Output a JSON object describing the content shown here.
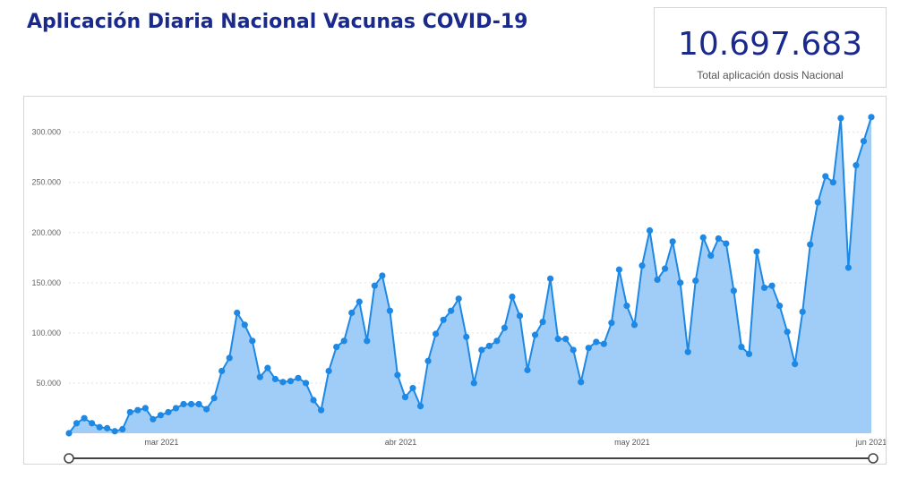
{
  "header": {
    "title": "Aplicación Diaria Nacional Vacunas COVID-19"
  },
  "kpi": {
    "value": "10.697.683",
    "label": "Total aplicación dosis Nacional"
  },
  "colors": {
    "title": "#1a2a8c",
    "line": "#1e88e5",
    "area": "#9fcdf7",
    "grid": "#e3e3e3"
  },
  "chart_data": {
    "type": "area",
    "ylim": [
      0,
      330000
    ],
    "yticks": [
      {
        "value": 50000,
        "label": "50.000"
      },
      {
        "value": 100000,
        "label": "100.000"
      },
      {
        "value": 150000,
        "label": "150.000"
      },
      {
        "value": 200000,
        "label": "200.000"
      },
      {
        "value": 250000,
        "label": "250.000"
      },
      {
        "value": 300000,
        "label": "300.000"
      }
    ],
    "xticks": [
      {
        "date": "2021-03-01",
        "label": "mar 2021"
      },
      {
        "date": "2021-04-01",
        "label": "abr 2021"
      },
      {
        "date": "2021-05-01",
        "label": "may 2021"
      },
      {
        "date": "2021-06-01",
        "label": "jun 2021"
      }
    ],
    "x_start": "2021-02-17",
    "x_end": "2021-06-01",
    "values": [
      0,
      10000,
      15000,
      10000,
      6000,
      5000,
      2000,
      4000,
      21000,
      23000,
      25000,
      14000,
      18000,
      21000,
      25000,
      29000,
      29000,
      29000,
      24000,
      35000,
      62000,
      75000,
      120000,
      108000,
      92000,
      56000,
      65000,
      54000,
      51000,
      52000,
      55000,
      50000,
      33000,
      23000,
      62000,
      86000,
      92000,
      120000,
      131000,
      92000,
      147000,
      157000,
      122000,
      58000,
      36000,
      45000,
      27000,
      72000,
      99000,
      113000,
      122000,
      134000,
      96000,
      50000,
      83000,
      87000,
      92000,
      105000,
      136000,
      117000,
      63000,
      98000,
      111000,
      154000,
      94000,
      94000,
      83000,
      51000,
      85000,
      91000,
      89000,
      110000,
      163000,
      127000,
      108000,
      167000,
      202000,
      153000,
      164000,
      191000,
      150000,
      81000,
      152000,
      195000,
      177000,
      194000,
      189000,
      142000,
      86000,
      79000,
      181000,
      145000,
      147000,
      127000,
      101000,
      69000,
      121000,
      188000,
      230000,
      256000,
      250000,
      314000,
      165000,
      267000,
      291000,
      315000
    ]
  }
}
